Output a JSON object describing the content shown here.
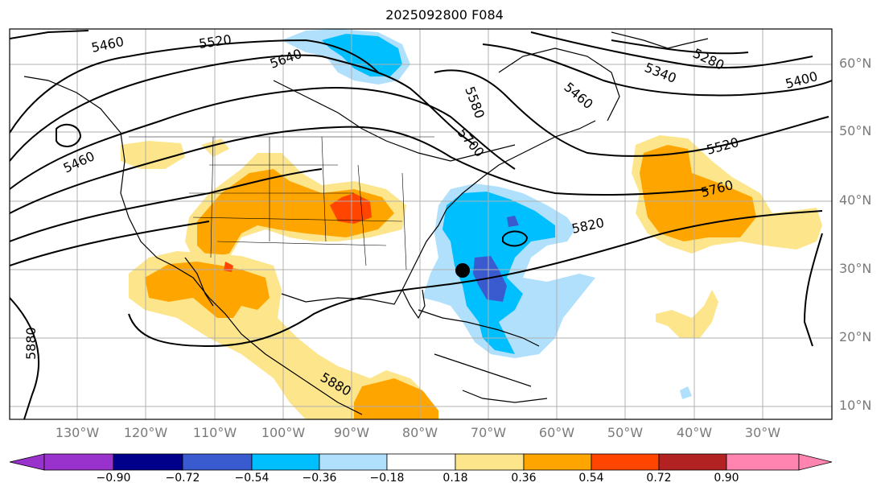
{
  "title": "2025092800 F084",
  "map": {
    "lat_labels": [
      "60°N",
      "50°N",
      "40°N",
      "30°N",
      "20°N",
      "10°N"
    ],
    "lon_labels": [
      "130°W",
      "120°W",
      "110°W",
      "100°W",
      "90°W",
      "80°W",
      "70°W",
      "60°W",
      "50°W",
      "40°W",
      "30°W"
    ],
    "contour_labels": [
      "5460",
      "5520",
      "5640",
      "5580",
      "5700",
      "5460",
      "5340",
      "5280",
      "5400",
      "5520",
      "5760",
      "5820",
      "5460",
      "5880",
      "5880"
    ],
    "marker": "black-dot"
  },
  "colorbar": {
    "tick_labels": [
      "−0.90",
      "−0.72",
      "−0.54",
      "−0.36",
      "−0.18",
      "0.18",
      "0.36",
      "0.54",
      "0.72",
      "0.90"
    ],
    "colors": [
      "#9932cc",
      "#00008b",
      "#3a5bd0",
      "#00bfff",
      "#b0e0fb",
      "#ffffff",
      "#fce58a",
      "#ffa500",
      "#ff4500",
      "#b22222",
      "#ff85b0"
    ]
  },
  "colors": {
    "neg_dark": "#3a5bd0",
    "neg_mid": "#00bfff",
    "neg_light": "#b0e0fb",
    "pos_light": "#fce58a",
    "pos_mid": "#ffa500",
    "pos_high": "#ff4500"
  }
}
